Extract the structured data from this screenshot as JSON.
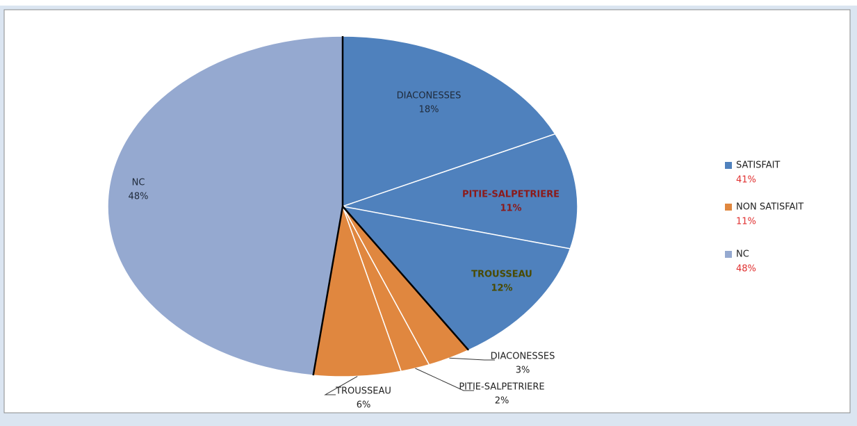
{
  "chart_data": {
    "type": "pie",
    "categories": [
      "DIACONESSES",
      "PITIE-SALPETRIERE",
      "TROUSSEAU",
      "DIACONESSES",
      "PITIE-SALPETRIERE",
      "TROUSSEAU",
      "NC"
    ],
    "values": [
      18,
      11,
      12,
      3,
      2,
      6,
      48
    ],
    "value_labels": [
      "18%",
      "11%",
      "12%",
      "3%",
      "2%",
      "6%",
      "48%"
    ],
    "colors": [
      "#4f81bd",
      "#4f81bd",
      "#4f81bd",
      "#e0873f",
      "#e0873f",
      "#e0873f",
      "#95a9d0"
    ],
    "label_colors": [
      "#1f2a3a",
      "#8b1a1a",
      "#4a4a00",
      "#222222",
      "#222222",
      "#222222",
      "#1f2a3a"
    ],
    "legend": {
      "position": "right",
      "names": [
        "SATISFAIT",
        "NON SATISFAIT",
        "NC"
      ],
      "colors": [
        "#4f81bd",
        "#e0873f",
        "#95a9d0"
      ],
      "values": [
        41,
        11,
        48
      ],
      "value_labels": [
        "41%",
        "11%",
        "48%"
      ]
    }
  }
}
